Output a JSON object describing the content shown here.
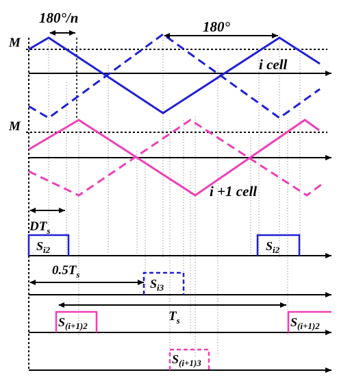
{
  "labels": {
    "top_angle": "180°/n",
    "right_angle": "180°",
    "m_top": "M",
    "m_mid": "M",
    "i_cell": "i cell",
    "i1_cell": "i +1 cell",
    "dts_main": "DT",
    "dts_sub": "s",
    "half_ts_main": "0.5T",
    "half_ts_sub": "s",
    "ts_main": "T",
    "ts_sub": "s",
    "si2_left_main": "S",
    "si2_left_sub": "i2",
    "si2_right_main": "S",
    "si2_right_sub": "i2",
    "si3_main": "S",
    "si3_sub": "i3",
    "s_i1_2_left_main": "S",
    "s_i1_2_left_sub": "(i+1)2",
    "s_i1_2_right_main": "S",
    "s_i1_2_right_sub": "(i+1)2",
    "s_i1_3_main": "S",
    "s_i1_3_sub": "(i+1)3"
  },
  "colors": {
    "blue": "#1f1fd6",
    "pink": "#ee3fb6",
    "black": "#000000",
    "grid": "#9a9a9a"
  }
}
